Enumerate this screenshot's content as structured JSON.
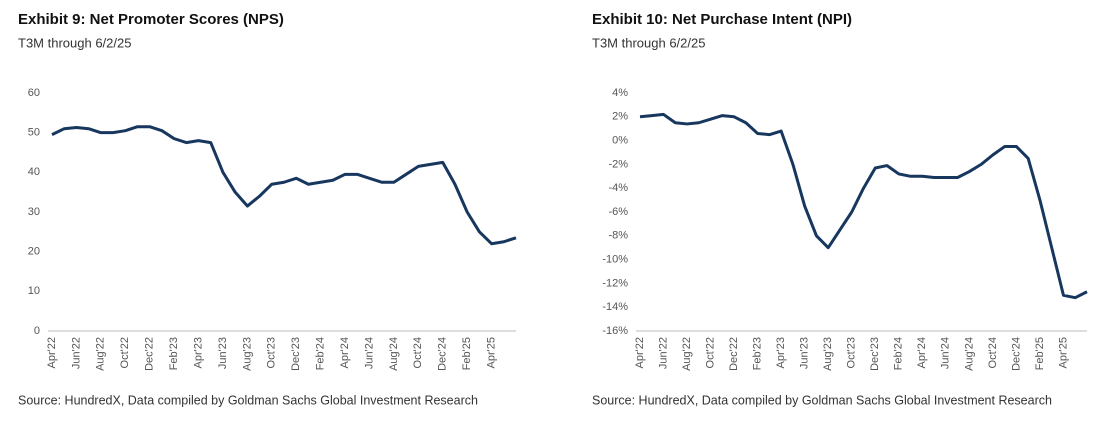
{
  "chart_data": [
    {
      "type": "line",
      "title": "Exhibit 9: Net Promoter Scores (NPS)",
      "subtitle": "T3M through 6/2/25",
      "source": "Source: HundredX, Data compiled by Goldman Sachs Global Investment Research",
      "categories": [
        "Apr'22",
        null,
        "Jun'22",
        null,
        "Aug'22",
        null,
        "Oct'22",
        null,
        "Dec'22",
        null,
        "Feb'23",
        null,
        "Apr'23",
        null,
        "Jun'23",
        null,
        "Aug'23",
        null,
        "Oct'23",
        null,
        "Dec'23",
        null,
        "Feb'24",
        null,
        "Apr'24",
        null,
        "Jun'24",
        null,
        "Aug'24",
        null,
        "Oct'24",
        null,
        "Dec'24",
        null,
        "Feb'25",
        null,
        "Apr'25",
        null,
        null
      ],
      "values": [
        49.5,
        51,
        51.3,
        51,
        50,
        50,
        50.5,
        51.5,
        51.5,
        50.5,
        48.5,
        47.5,
        48,
        47.5,
        40,
        35,
        31.5,
        34,
        37,
        37.5,
        38.5,
        37,
        37.5,
        38,
        39.5,
        39.5,
        38.5,
        37.5,
        37.5,
        39.5,
        41.5,
        42,
        42.5,
        37,
        30,
        25,
        22,
        22.5,
        23.5
      ],
      "color": "#17375e",
      "ylim": [
        0,
        60
      ],
      "yticks": [
        0,
        10,
        20,
        30,
        40,
        50,
        60
      ],
      "grid": false
    },
    {
      "type": "line",
      "title": "Exhibit 10: Net Purchase Intent (NPI)",
      "subtitle": "T3M through 6/2/25",
      "source": "Source: HundredX, Data compiled by Goldman Sachs Global Investment Research",
      "categories": [
        "Apr'22",
        null,
        "Jun'22",
        null,
        "Aug'22",
        null,
        "Oct'22",
        null,
        "Dec'22",
        null,
        "Feb'23",
        null,
        "Apr'23",
        null,
        "Jun'23",
        null,
        "Aug'23",
        null,
        "Oct'23",
        null,
        "Dec'23",
        null,
        "Feb'24",
        null,
        "Apr'24",
        null,
        "Jun'24",
        null,
        "Aug'24",
        null,
        "Oct'24",
        null,
        "Dec'24",
        null,
        "Feb'25",
        null,
        "Apr'25",
        null,
        null
      ],
      "values": [
        2,
        2.1,
        2.2,
        1.5,
        1.4,
        1.5,
        1.8,
        2.1,
        2,
        1.5,
        0.6,
        0.5,
        0.8,
        -2,
        -5.5,
        -8,
        -9,
        -7.5,
        -6,
        -4,
        -2.3,
        -2.1,
        -2.8,
        -3,
        -3,
        -3.1,
        -3.1,
        -3.1,
        -2.6,
        -2,
        -1.2,
        -0.5,
        -0.5,
        -1.5,
        -5,
        -9,
        -13,
        -13.2,
        -12.7
      ],
      "color": "#17375e",
      "ylim": [
        -16,
        4
      ],
      "yticks": [
        {
          "value": -16,
          "label": "-16%"
        },
        {
          "value": -14,
          "label": "-14%"
        },
        {
          "value": -12,
          "label": "-12%"
        },
        {
          "value": -10,
          "label": "-10%"
        },
        {
          "value": -8,
          "label": "-8%"
        },
        {
          "value": -6,
          "label": "-6%"
        },
        {
          "value": -4,
          "label": "-4%"
        },
        {
          "value": -2,
          "label": "-2%"
        },
        {
          "value": 0,
          "label": "0%"
        },
        {
          "value": 2,
          "label": "2%"
        },
        {
          "value": 4,
          "label": "4%"
        }
      ],
      "grid": false
    }
  ]
}
